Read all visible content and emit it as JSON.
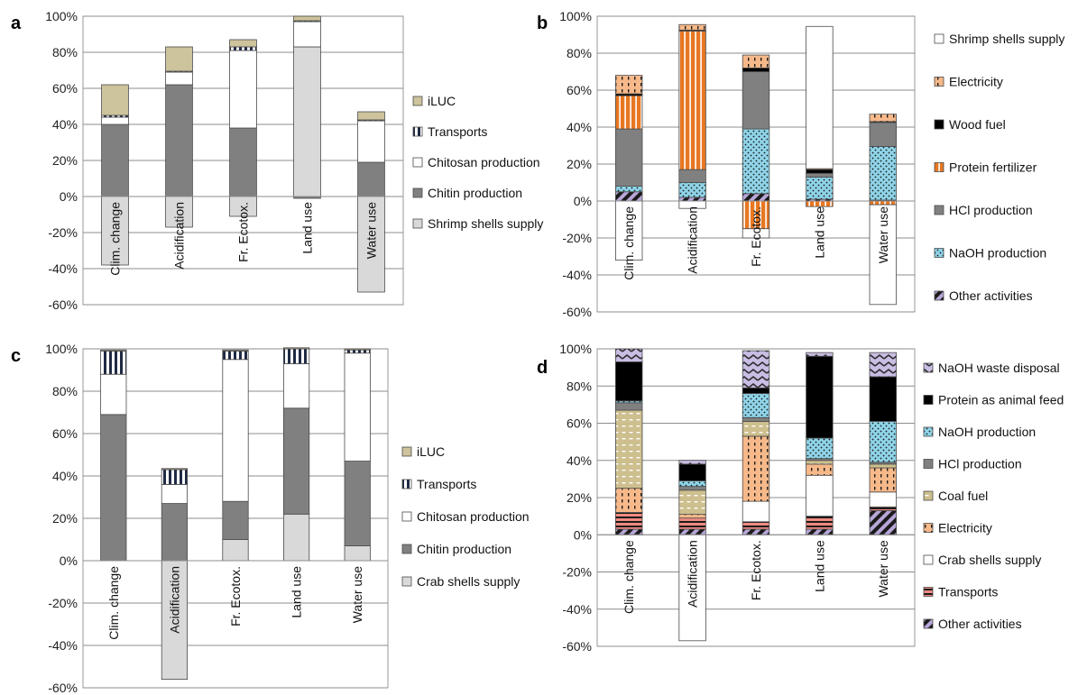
{
  "page": {
    "pattern_colors": {
      "orange": "#e87722",
      "light_blue": "#8fd4e8",
      "lavender": "#b7a6d8",
      "tan": "#cdbf8e",
      "peach": "#f7b98a",
      "salmon": "#f08a80"
    }
  },
  "chart_data": [
    {
      "panel": "a",
      "type": "bar",
      "stacked": true,
      "ylim": [
        -60,
        100
      ],
      "yticks": [
        -60,
        -40,
        -20,
        0,
        20,
        40,
        60,
        80,
        100
      ],
      "ytick_labels": [
        "-60%",
        "-40%",
        "-20%",
        "0%",
        "20%",
        "40%",
        "60%",
        "80%",
        "100%"
      ],
      "grid": true,
      "legend_position": "right",
      "categories": [
        "Clim. change",
        "Acidification",
        "Fr. Ecotox.",
        "Land use",
        "Water use"
      ],
      "legend": [
        "iLUC",
        "Transports",
        "Chitosan production",
        "Chitin production",
        "Shrimp shells supply"
      ],
      "series": [
        {
          "name": "Shrimp shells supply",
          "fill": "#d9d9d9",
          "pattern": "solid",
          "values": [
            -38,
            -17,
            -11,
            83,
            -53
          ]
        },
        {
          "name": "Chitin production",
          "fill": "#808080",
          "pattern": "solid",
          "values": [
            40,
            62,
            38,
            -1,
            19
          ]
        },
        {
          "name": "Chitosan production",
          "fill": "#ffffff",
          "pattern": "solid",
          "values": [
            4,
            7,
            43,
            14,
            23
          ]
        },
        {
          "name": "Transports",
          "fill": "#1f2a44",
          "pattern": "stripes-dark",
          "values": [
            1,
            0.5,
            2,
            0.5,
            0.5
          ]
        },
        {
          "name": "iLUC",
          "fill": "#cdc39c",
          "pattern": "solid",
          "values": [
            17,
            13.5,
            4,
            2.5,
            4.5
          ]
        }
      ]
    },
    {
      "panel": "b",
      "type": "bar",
      "stacked": true,
      "ylim": [
        -60,
        100
      ],
      "yticks": [
        -60,
        -40,
        -20,
        0,
        20,
        40,
        60,
        80,
        100
      ],
      "ytick_labels": [
        "-60%",
        "-40%",
        "-20%",
        "0%",
        "20%",
        "40%",
        "60%",
        "80%",
        "100%"
      ],
      "grid": true,
      "legend_position": "right",
      "categories": [
        "Clim. change",
        "Acidification",
        "Fr. Ecotox.",
        "Land use",
        "Water use"
      ],
      "legend": [
        "Shrimp shells supply",
        "Electricity",
        "Wood fuel",
        "Protein fertilizer",
        "HCl production",
        "NaOH production",
        "Other activities"
      ],
      "series": [
        {
          "name": "Other activities",
          "fill": "#ffffff",
          "pattern": "diag-lavender",
          "values": [
            5,
            2,
            4,
            1,
            0.5
          ]
        },
        {
          "name": "NaOH production",
          "fill": "#8fd4e8",
          "pattern": "dots",
          "values": [
            3,
            8,
            35,
            12,
            29
          ]
        },
        {
          "name": "HCl production",
          "fill": "#808080",
          "pattern": "solid",
          "values": [
            31,
            7,
            31,
            2,
            13
          ]
        },
        {
          "name": "Protein fertilizer",
          "fill": "#e87722",
          "pattern": "vstripes-orange",
          "values": [
            18,
            75,
            -15,
            -3,
            -2
          ]
        },
        {
          "name": "Wood fuel",
          "fill": "#000000",
          "pattern": "solid",
          "values": [
            1,
            0.5,
            2,
            2,
            0.5
          ]
        },
        {
          "name": "Electricity",
          "fill": "#f7b98a",
          "pattern": "dashes",
          "values": [
            10,
            3,
            7,
            0.5,
            4
          ]
        },
        {
          "name": "Shrimp shells supply",
          "fill": "#ffffff",
          "pattern": "solid",
          "values": [
            -32,
            -4,
            -5,
            77,
            -54
          ]
        }
      ]
    },
    {
      "panel": "c",
      "type": "bar",
      "stacked": true,
      "ylim": [
        -60,
        100
      ],
      "yticks": [
        -60,
        -40,
        -20,
        0,
        20,
        40,
        60,
        80,
        100
      ],
      "ytick_labels": [
        "-60%",
        "-40%",
        "-20%",
        "0%",
        "20%",
        "40%",
        "60%",
        "80%",
        "100%"
      ],
      "grid": true,
      "legend_position": "right",
      "categories": [
        "Clim. change",
        "Acidification",
        "Fr. Ecotox.",
        "Land use",
        "Water use"
      ],
      "legend": [
        "iLUC",
        "Transports",
        "Chitosan production",
        "Chitin production",
        "Crab shells supply"
      ],
      "series": [
        {
          "name": "Crab shells supply",
          "fill": "#d9d9d9",
          "pattern": "solid",
          "values": [
            0,
            -56,
            10,
            22,
            7
          ]
        },
        {
          "name": "Chitin production",
          "fill": "#808080",
          "pattern": "solid",
          "values": [
            69,
            27,
            18,
            50,
            40
          ]
        },
        {
          "name": "Chitosan production",
          "fill": "#ffffff",
          "pattern": "solid",
          "values": [
            19,
            9,
            67,
            21,
            51
          ]
        },
        {
          "name": "Transports",
          "fill": "#1f2a44",
          "pattern": "stripes-dark",
          "values": [
            11,
            7,
            4,
            7,
            1.5
          ]
        },
        {
          "name": "iLUC",
          "fill": "#cdc39c",
          "pattern": "solid",
          "values": [
            0.5,
            0.5,
            0.5,
            0.5,
            0.5
          ]
        }
      ]
    },
    {
      "panel": "d",
      "type": "bar",
      "stacked": true,
      "ylim": [
        -60,
        100
      ],
      "yticks": [
        -60,
        -40,
        -20,
        0,
        20,
        40,
        60,
        80,
        100
      ],
      "ytick_labels": [
        "-60%",
        "-40%",
        "-20%",
        "0%",
        "20%",
        "40%",
        "60%",
        "80%",
        "100%"
      ],
      "grid": true,
      "legend_position": "right",
      "categories": [
        "Clim. change",
        "Acidification",
        "Fr. Ecotox.",
        "Land use",
        "Water use"
      ],
      "legend": [
        "NaOH waste disposal",
        "Protein as animal feed",
        "NaOH production",
        "HCl production",
        "Coal fuel",
        "Electricity",
        "Crab shells supply",
        "Transports",
        "Other activities"
      ],
      "series": [
        {
          "name": "Other activities",
          "fill": "#ffffff",
          "pattern": "diag-lavender",
          "values": [
            3,
            3,
            3,
            3,
            13
          ]
        },
        {
          "name": "Transports",
          "fill": "#f08a80",
          "pattern": "hstripes-salmon",
          "values": [
            9,
            6,
            4,
            7,
            2
          ]
        },
        {
          "name": "Crab shells supply",
          "fill": "#ffffff",
          "pattern": "solid",
          "values": [
            0,
            -57,
            11,
            22,
            8
          ]
        },
        {
          "name": "Electricity",
          "fill": "#f7b98a",
          "pattern": "dashes",
          "values": [
            13,
            2,
            35,
            6,
            13
          ]
        },
        {
          "name": "Coal fuel",
          "fill": "#cdbf8e",
          "pattern": "dashes-light",
          "values": [
            42,
            13,
            8,
            2,
            2
          ]
        },
        {
          "name": "HCl production",
          "fill": "#808080",
          "pattern": "solid",
          "values": [
            4,
            2,
            2,
            1,
            1
          ]
        },
        {
          "name": "NaOH production",
          "fill": "#8fd4e8",
          "pattern": "dots",
          "values": [
            1,
            3,
            13,
            11,
            22
          ]
        },
        {
          "name": "Protein as animal feed",
          "fill": "#000000",
          "pattern": "solid",
          "values": [
            21,
            9,
            3,
            44,
            24
          ]
        },
        {
          "name": "NaOH waste disposal",
          "fill": "#ffffff",
          "pattern": "zigzag",
          "values": [
            7,
            2,
            20,
            2,
            13
          ]
        }
      ]
    }
  ]
}
